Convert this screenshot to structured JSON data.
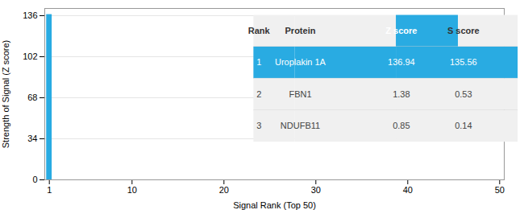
{
  "chart_data": {
    "type": "bar",
    "x": [
      1
    ],
    "values": [
      136.94
    ],
    "color": "#29abe2",
    "xlim": [
      0.5,
      50.5
    ],
    "xticks": [
      1,
      10,
      20,
      30,
      40,
      50
    ],
    "ylim": [
      0,
      142
    ],
    "yticks": [
      0,
      34,
      68,
      102,
      136
    ],
    "xlabel": "Signal Rank (Top 50)",
    "ylabel": "Strength of Signal (Z score)",
    "grid": true,
    "table": {
      "headers": [
        "Rank",
        "Protein",
        "Z score",
        "S score"
      ],
      "rows": [
        [
          "1",
          "Uroplakin 1A",
          "136.94",
          "135.56"
        ],
        [
          "2",
          "FBN1",
          "1.38",
          "0.53"
        ],
        [
          "3",
          "NDUFB11",
          "0.85",
          "0.14"
        ]
      ]
    }
  }
}
